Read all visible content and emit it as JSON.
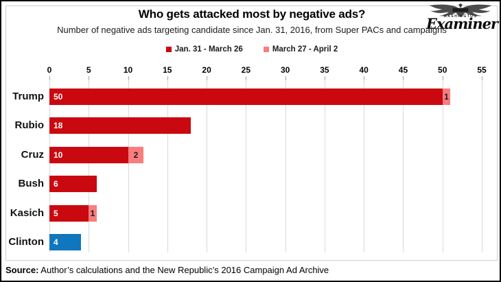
{
  "header": {
    "title": "Who gets attacked most by negative ads?",
    "subtitle": "Number of negative ads targeting candidate since Jan. 31, 2016, from Super PACs and campaigns"
  },
  "logo": {
    "city": "WASHINGTON",
    "brand": "Examiner"
  },
  "legend": [
    {
      "label": "Jan. 31 - March 26",
      "color": "#c9090f"
    },
    {
      "label": "March 27 - April 2",
      "color": "#f97d7e"
    }
  ],
  "chart_data": {
    "type": "bar",
    "orientation": "horizontal",
    "title": "Who gets attacked most by negative ads?",
    "subtitle": "Number of negative ads targeting candidate since Jan. 31, 2016, from Super PACs and campaigns",
    "xlabel": "",
    "ylabel": "",
    "xlim": [
      0,
      55
    ],
    "x_ticks": [
      0,
      5,
      10,
      15,
      20,
      25,
      30,
      35,
      40,
      45,
      50,
      55
    ],
    "grid": true,
    "legend_position": "top",
    "categories": [
      "Trump",
      "Rubio",
      "Cruz",
      "Bush",
      "Kasich",
      "Clinton"
    ],
    "series": [
      {
        "name": "Jan. 31 - March 26",
        "values": [
          50,
          18,
          10,
          6,
          5,
          4
        ]
      },
      {
        "name": "March 27 - April 2",
        "values": [
          1,
          0,
          2,
          0,
          1,
          0
        ]
      }
    ],
    "rows": [
      {
        "category": "Trump",
        "segments": [
          {
            "value": 50,
            "label": "50",
            "color": "#c9090f",
            "label_color": "#ffffff",
            "label_align": "left"
          },
          {
            "value": 1,
            "label": "1",
            "color": "#f97d7e",
            "label_color": "#1a1a1a",
            "label_align": "center"
          }
        ]
      },
      {
        "category": "Rubio",
        "segments": [
          {
            "value": 18,
            "label": "18",
            "color": "#c9090f",
            "label_color": "#ffffff",
            "label_align": "left"
          }
        ]
      },
      {
        "category": "Cruz",
        "segments": [
          {
            "value": 10,
            "label": "10",
            "color": "#c9090f",
            "label_color": "#ffffff",
            "label_align": "left"
          },
          {
            "value": 2,
            "label": "2",
            "color": "#f97d7e",
            "label_color": "#1a1a1a",
            "label_align": "center"
          }
        ]
      },
      {
        "category": "Bush",
        "segments": [
          {
            "value": 6,
            "label": "6",
            "color": "#c9090f",
            "label_color": "#ffffff",
            "label_align": "left"
          }
        ]
      },
      {
        "category": "Kasich",
        "segments": [
          {
            "value": 5,
            "label": "5",
            "color": "#c9090f",
            "label_color": "#ffffff",
            "label_align": "left"
          },
          {
            "value": 1,
            "label": "1",
            "color": "#f97d7e",
            "label_color": "#1a1a1a",
            "label_align": "center"
          }
        ]
      },
      {
        "category": "Clinton",
        "segments": [
          {
            "value": 4,
            "label": "4",
            "color": "#1076bd",
            "label_color": "#ffffff",
            "label_align": "left"
          }
        ]
      }
    ],
    "colors": {
      "series1": "#c9090f",
      "series2": "#f97d7e",
      "clinton_blue": "#1076bd",
      "gridline": "#d9d9d9"
    }
  },
  "source": {
    "prefix": "Source:",
    "text": " Author’s calculations and the New Republic’s 2016 Campaign Ad Archive"
  }
}
